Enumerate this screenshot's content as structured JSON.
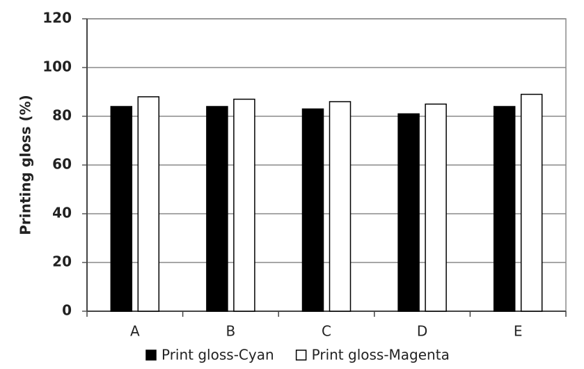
{
  "chart_data": {
    "type": "bar",
    "y_label": "Printing gloss (%)",
    "categories": [
      "A",
      "B",
      "C",
      "D",
      "E"
    ],
    "series": [
      {
        "name": "Print gloss-Cyan",
        "color": "#000000",
        "values": [
          84,
          84,
          83,
          81,
          84
        ]
      },
      {
        "name": "Print gloss-Magenta",
        "color": "#ffffff",
        "values": [
          88,
          87,
          86,
          85,
          89
        ]
      }
    ],
    "ylim": [
      0,
      120
    ],
    "yticks": [
      0,
      20,
      40,
      60,
      80,
      100,
      120
    ],
    "grid": true,
    "legend": "bottom"
  }
}
